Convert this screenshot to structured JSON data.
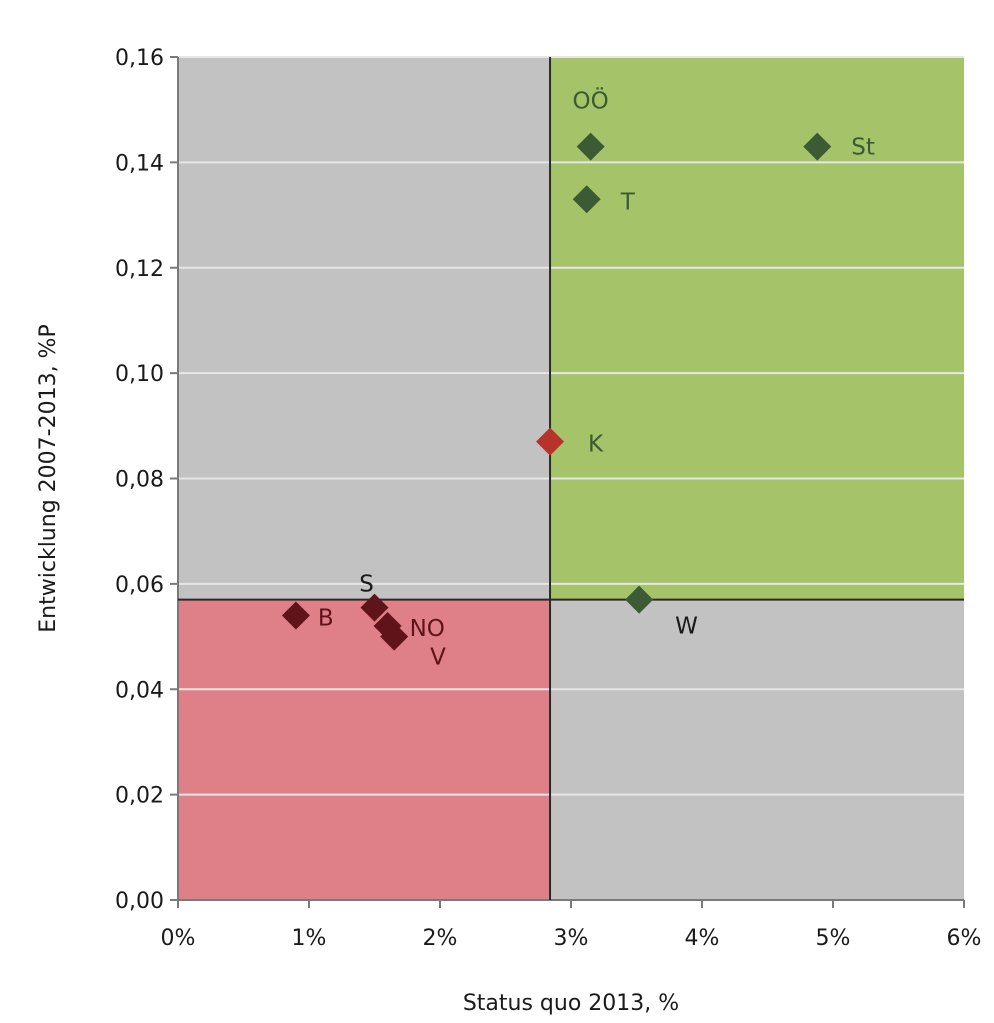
{
  "chart_data": {
    "type": "scatter",
    "title": "",
    "xlabel": "Status quo 2013, %",
    "ylabel": "Entwicklung 2007-2013, %P",
    "xlim": [
      0,
      6
    ],
    "ylim": [
      0,
      0.16
    ],
    "x_ticks": [
      {
        "value": 0,
        "label": "0%"
      },
      {
        "value": 1,
        "label": "1%"
      },
      {
        "value": 2,
        "label": "2%"
      },
      {
        "value": 3,
        "label": "3%"
      },
      {
        "value": 4,
        "label": "4%"
      },
      {
        "value": 5,
        "label": "5%"
      },
      {
        "value": 6,
        "label": "6%"
      }
    ],
    "y_ticks": [
      {
        "value": 0.0,
        "label": "0,00"
      },
      {
        "value": 0.02,
        "label": "0,02"
      },
      {
        "value": 0.04,
        "label": "0,04"
      },
      {
        "value": 0.06,
        "label": "0,06"
      },
      {
        "value": 0.08,
        "label": "0,08"
      },
      {
        "value": 0.1,
        "label": "0,10"
      },
      {
        "value": 0.12,
        "label": "0,12"
      },
      {
        "value": 0.14,
        "label": "0,14"
      },
      {
        "value": 0.16,
        "label": "0,16"
      }
    ],
    "grid": true,
    "reference_lines": {
      "x": 2.84,
      "y": 0.057
    },
    "regions": [
      {
        "quadrant": "top-right",
        "color": "#a5c46a"
      },
      {
        "quadrant": "bottom-left",
        "color": "#df7f87"
      }
    ],
    "colors": {
      "plot_bg": "#c2c2c2",
      "grid": "#e6e6e6",
      "green_marker": "#3c5a33",
      "dark_red_marker": "#5e1419",
      "red_marker": "#b8322c"
    },
    "points": [
      {
        "label": "OÖ",
        "x": 3.15,
        "y": 0.143,
        "color": "#3c5a33",
        "label_color": "#3c5a33"
      },
      {
        "label": "St",
        "x": 4.88,
        "y": 0.143,
        "color": "#3c5a33",
        "label_color": "#3c5a33"
      },
      {
        "label": "T",
        "x": 3.12,
        "y": 0.133,
        "color": "#3c5a33",
        "label_color": "#3c5a33"
      },
      {
        "label": "K",
        "x": 2.84,
        "y": 0.087,
        "color": "#b8322c",
        "label_color": "#3c5a33"
      },
      {
        "label": "W",
        "x": 3.52,
        "y": 0.057,
        "color": "#3c5a33",
        "label_color": "#1a1a1a"
      },
      {
        "label": "S",
        "x": 1.5,
        "y": 0.0555,
        "color": "#5e1419",
        "label_color": "#1a1a1a"
      },
      {
        "label": "B",
        "x": 0.9,
        "y": 0.054,
        "color": "#5e1419",
        "label_color": "#5e1419"
      },
      {
        "label": "NO",
        "x": 1.6,
        "y": 0.052,
        "color": "#5e1419",
        "label_color": "#5e1419"
      },
      {
        "label": "V",
        "x": 1.65,
        "y": 0.05,
        "color": "#5e1419",
        "label_color": "#5e1419"
      }
    ]
  }
}
